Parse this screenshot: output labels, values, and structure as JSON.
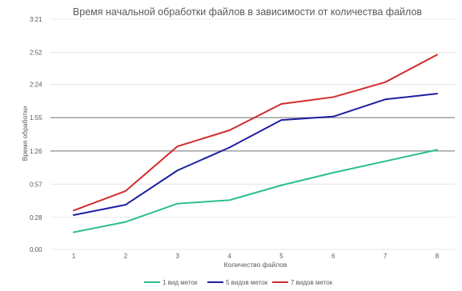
{
  "chart_data": {
    "type": "line",
    "title": "Время начальной обработки файлов в зависимости от количества файлов",
    "xlabel": "Количество файлов",
    "ylabel": "Время обработки",
    "x": [
      1,
      2,
      3,
      4,
      5,
      6,
      7,
      8
    ],
    "y_ticks": [
      "0:00",
      "0:28",
      "0:57",
      "1:26",
      "1:55",
      "2:24",
      "2:52",
      "3:21"
    ],
    "ylim_seconds": [
      0,
      201
    ],
    "y_tick_seconds": [
      0,
      28,
      57,
      86,
      115,
      144,
      172,
      201
    ],
    "highlighted_gridlines": [
      "1:26",
      "1:55"
    ],
    "series": [
      {
        "name": "1 вид меток",
        "color": "#2bbf8a",
        "values": [
          15,
          24,
          40,
          43,
          56,
          67,
          77,
          87
        ]
      },
      {
        "name": "5 видов меток",
        "color": "#1c1fa0",
        "values": [
          30,
          39,
          69,
          89,
          113,
          116,
          131,
          136
        ]
      },
      {
        "name": "7 видов меток",
        "color": "#d42a2a",
        "values": [
          34,
          51,
          90,
          104,
          127,
          133,
          146,
          170
        ]
      }
    ],
    "legend_position": "bottom",
    "grid": true
  }
}
